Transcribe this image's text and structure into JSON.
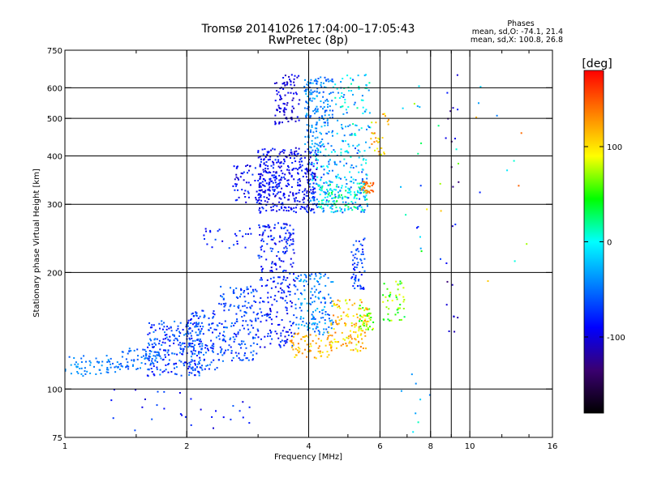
{
  "chart_data": {
    "type": "scatter",
    "title": "Tromsø 20141026 17:04:00–17:05:43",
    "subtitle": "RwPretec (8p)",
    "info": {
      "heading": "Phases",
      "line1": "mean, sd,O: -74.1, 21.4",
      "line2": "mean, sd,X: 100.8, 26.8"
    },
    "xlabel": "Frequency [MHz]",
    "ylabel": "Stationary phase Virtual Height [km]",
    "x_scale": "log",
    "y_scale": "log",
    "xlim": [
      1,
      16
    ],
    "ylim": [
      75,
      750
    ],
    "xticks": [
      1,
      2,
      4,
      6,
      8,
      10,
      16
    ],
    "xtick_labels": [
      "1",
      "2",
      "4",
      "6",
      "8",
      "10",
      "16"
    ],
    "x_minor_ticks": [
      1.5,
      3,
      5,
      7,
      9,
      12,
      14
    ],
    "grid_x": [
      2,
      4,
      6,
      8,
      9,
      10
    ],
    "yticks": [
      75,
      100,
      200,
      300,
      400,
      500,
      600,
      750
    ],
    "ytick_labels": [
      "75",
      "100",
      "200",
      "300",
      "400",
      "500",
      "600",
      "750"
    ],
    "grid_y": [
      100,
      200,
      300,
      400,
      500,
      600
    ],
    "grid": true,
    "colorbar": {
      "label": "[deg]",
      "range": [
        -180,
        180
      ],
      "ticks": [
        -100,
        0,
        100
      ],
      "tick_labels": [
        "-100",
        "0",
        "100"
      ],
      "colormap": "rainbow",
      "colors": [
        "#000000",
        "#3a0070",
        "#0000ff",
        "#0080ff",
        "#00ffff",
        "#00ff00",
        "#ffff00",
        "#ff8000",
        "#ff0000"
      ]
    },
    "scatter_groups": [
      {
        "x_range": [
          1.0,
          1.35
        ],
        "y_range": [
          108,
          122
        ],
        "count": 60,
        "phase_range": [
          -60,
          -30
        ]
      },
      {
        "x_range": [
          1.35,
          1.7
        ],
        "y_range": [
          112,
          128
        ],
        "count": 70,
        "phase_range": [
          -70,
          -35
        ]
      },
      {
        "x_range": [
          1.6,
          2.2
        ],
        "y_range": [
          108,
          150
        ],
        "count": 230,
        "phase_range": [
          -95,
          -40
        ]
      },
      {
        "x_range": [
          2.0,
          2.4
        ],
        "y_range": [
          112,
          160
        ],
        "count": 120,
        "phase_range": [
          -90,
          -45
        ]
      },
      {
        "x_range": [
          2.4,
          3.0
        ],
        "y_range": [
          118,
          185
        ],
        "count": 170,
        "phase_range": [
          -85,
          -45
        ]
      },
      {
        "x_range": [
          3.0,
          3.7
        ],
        "y_range": [
          128,
          270
        ],
        "count": 260,
        "phase_range": [
          -105,
          -60
        ]
      },
      {
        "x_range": [
          3.7,
          4.6
        ],
        "y_range": [
          138,
          200
        ],
        "count": 150,
        "phase_range": [
          -70,
          -20
        ]
      },
      {
        "x_range": [
          3.6,
          4.6
        ],
        "y_range": [
          120,
          140
        ],
        "count": 70,
        "phase_range": [
          90,
          140
        ]
      },
      {
        "x_range": [
          4.5,
          5.6
        ],
        "y_range": [
          125,
          170
        ],
        "count": 120,
        "phase_range": [
          80,
          140
        ]
      },
      {
        "x_range": [
          5.3,
          5.8
        ],
        "y_range": [
          140,
          165
        ],
        "count": 40,
        "phase_range": [
          40,
          110
        ]
      },
      {
        "x_range": [
          6.1,
          6.9
        ],
        "y_range": [
          150,
          190
        ],
        "count": 45,
        "phase_range": [
          30,
          90
        ]
      },
      {
        "x_range": [
          5.1,
          5.5
        ],
        "y_range": [
          180,
          250
        ],
        "count": 60,
        "phase_range": [
          -90,
          -50
        ]
      },
      {
        "x_range": [
          2.2,
          2.9
        ],
        "y_range": [
          230,
          260
        ],
        "count": 25,
        "phase_range": [
          -100,
          -60
        ]
      },
      {
        "x_range": [
          3.0,
          4.2
        ],
        "y_range": [
          285,
          420
        ],
        "count": 380,
        "phase_range": [
          -110,
          -70
        ]
      },
      {
        "x_range": [
          2.6,
          3.4
        ],
        "y_range": [
          300,
          380
        ],
        "count": 80,
        "phase_range": [
          -110,
          -70
        ]
      },
      {
        "x_range": [
          4.0,
          5.6
        ],
        "y_range": [
          285,
          420
        ],
        "count": 230,
        "phase_range": [
          -70,
          10
        ]
      },
      {
        "x_range": [
          4.2,
          5.6
        ],
        "y_range": [
          290,
          340
        ],
        "count": 90,
        "phase_range": [
          -20,
          40
        ]
      },
      {
        "x_range": [
          5.4,
          5.8
        ],
        "y_range": [
          320,
          345
        ],
        "count": 30,
        "phase_range": [
          120,
          160
        ]
      },
      {
        "x_range": [
          3.3,
          3.8
        ],
        "y_range": [
          480,
          650
        ],
        "count": 90,
        "phase_range": [
          -115,
          -85
        ]
      },
      {
        "x_range": [
          3.9,
          4.6
        ],
        "y_range": [
          420,
          640
        ],
        "count": 180,
        "phase_range": [
          -70,
          -20
        ]
      },
      {
        "x_range": [
          4.6,
          5.7
        ],
        "y_range": [
          420,
          650
        ],
        "count": 90,
        "phase_range": [
          -60,
          20
        ]
      },
      {
        "x_range": [
          5.7,
          6.3
        ],
        "y_range": [
          400,
          520
        ],
        "count": 30,
        "phase_range": [
          80,
          140
        ]
      },
      {
        "x_range": [
          8.7,
          9.4
        ],
        "y_range": [
          140,
          650
        ],
        "count": 22,
        "phase_range": [
          -140,
          -80
        ]
      },
      {
        "x_range": [
          7.3,
          7.6
        ],
        "y_range": [
          220,
          650
        ],
        "count": 10,
        "phase_range": [
          -100,
          60
        ]
      },
      {
        "x_range": [
          6.5,
          14
        ],
        "y_range": [
          180,
          650
        ],
        "count": 25,
        "phase_range": [
          -100,
          150
        ]
      },
      {
        "x_range": [
          1.3,
          2.9
        ],
        "y_range": [
          78,
          100
        ],
        "count": 30,
        "phase_range": [
          -110,
          -60
        ]
      },
      {
        "x_range": [
          6.6,
          8.0
        ],
        "y_range": [
          75,
          110
        ],
        "count": 8,
        "phase_range": [
          -60,
          20
        ]
      }
    ]
  }
}
